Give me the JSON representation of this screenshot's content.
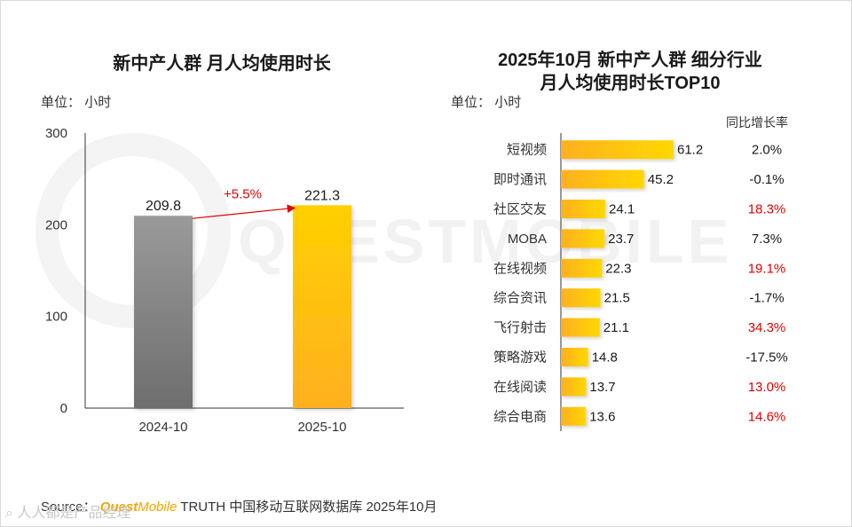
{
  "left_chart": {
    "title": "新中产人群 月人均使用时长",
    "unit_label": "单位：",
    "unit_value": "小时",
    "growth_label": "+5.5%"
  },
  "right_chart": {
    "title_line1": "2025年10月 新中产人群 细分行业",
    "title_line2": "月人均使用时长TOP10",
    "unit_label": "单位：",
    "unit_value": "小时",
    "growth_header": "同比增长率"
  },
  "chart_data": [
    {
      "type": "bar",
      "title": "新中产人群 月人均使用时长",
      "categories": [
        "2024-10",
        "2025-10"
      ],
      "values": [
        209.8,
        221.3
      ],
      "value_labels": [
        "209.8",
        "221.3"
      ],
      "ylim": [
        0,
        300
      ],
      "yticks": [
        "0",
        "100",
        "200",
        "300"
      ],
      "ylabel": "小时",
      "annotation": "+5.5%",
      "colors": [
        "#8a8a8a",
        "#ffc000"
      ]
    },
    {
      "type": "bar",
      "orientation": "horizontal",
      "title": "2025年10月 新中产人群 细分行业 月人均使用时长TOP10",
      "categories": [
        "短视频",
        "即时通讯",
        "社区交友",
        "MOBA",
        "在线视频",
        "综合资讯",
        "飞行射击",
        "策略游戏",
        "在线阅读",
        "综合电商"
      ],
      "values": [
        61.2,
        45.2,
        24.1,
        23.7,
        22.3,
        21.5,
        21.1,
        14.8,
        13.7,
        13.6
      ],
      "value_labels": [
        "61.2",
        "45.2",
        "24.1",
        "23.7",
        "22.3",
        "21.5",
        "21.1",
        "14.8",
        "13.7",
        "13.6"
      ],
      "growth": [
        "2.0%",
        "-0.1%",
        "18.3%",
        "7.3%",
        "19.1%",
        "-1.7%",
        "34.3%",
        "-17.5%",
        "13.0%",
        "14.6%"
      ],
      "growth_colors": [
        "#1a1a1a",
        "#1a1a1a",
        "#e00000",
        "#1a1a1a",
        "#e00000",
        "#1a1a1a",
        "#e00000",
        "#1a1a1a",
        "#e00000",
        "#e00000"
      ],
      "xlim": [
        0,
        70
      ],
      "ylabel": "小时"
    }
  ],
  "footer": {
    "prefix": "Source：",
    "brand_quest": "Quest",
    "brand_mobile": "Mobile",
    "rest": " TRUTH 中国移动互联网数据库 2025年10月",
    "corner_mark": "⌕ 人人都是产品经理"
  },
  "watermark": "QUESTMOBILE"
}
